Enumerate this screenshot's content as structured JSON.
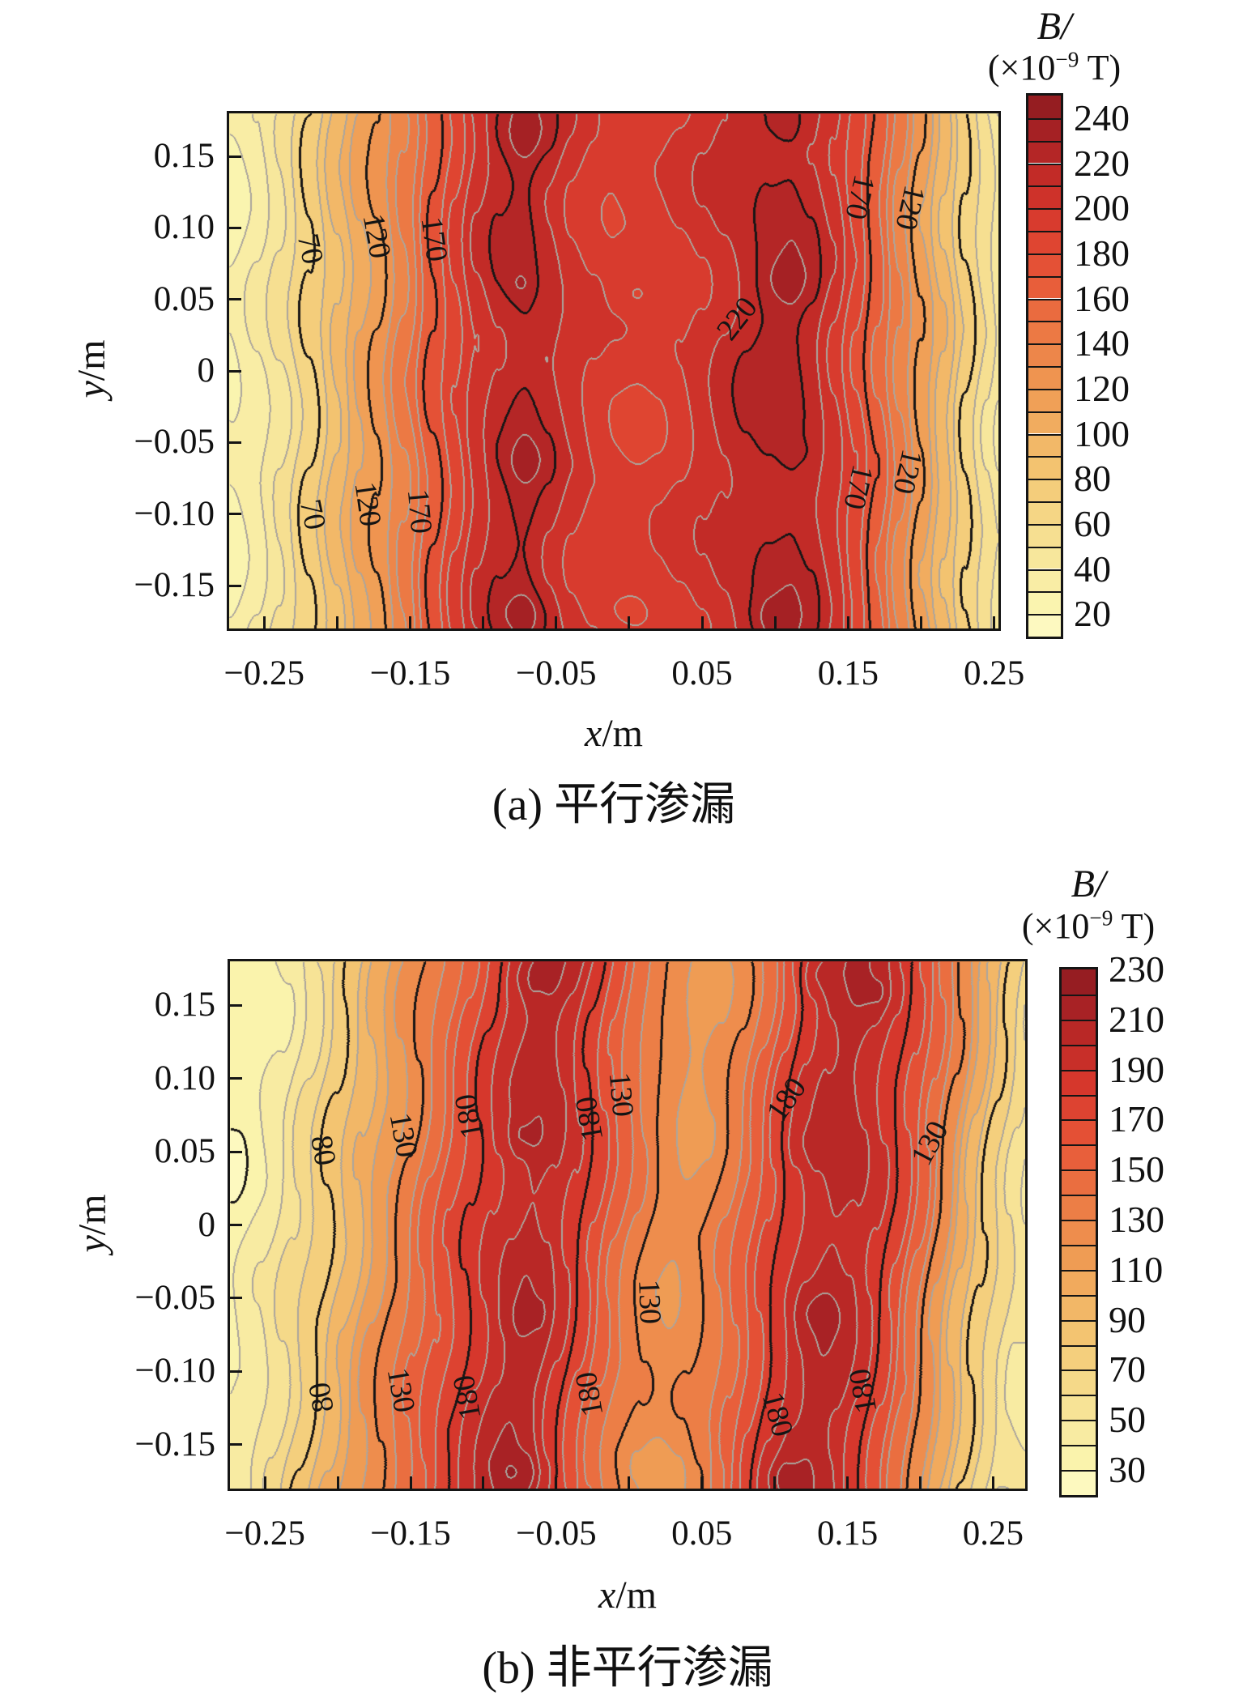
{
  "style": {
    "palette": [
      [
        0.0,
        "#FEFCC9"
      ],
      [
        0.07,
        "#FAF3AC"
      ],
      [
        0.15,
        "#F7E69B"
      ],
      [
        0.23,
        "#F5D685"
      ],
      [
        0.31,
        "#F3C471"
      ],
      [
        0.39,
        "#F1AE60"
      ],
      [
        0.47,
        "#EF9751"
      ],
      [
        0.55,
        "#EC7D46"
      ],
      [
        0.63,
        "#E9633C"
      ],
      [
        0.71,
        "#E24A33"
      ],
      [
        0.79,
        "#D5362C"
      ],
      [
        0.86,
        "#C02A27"
      ],
      [
        0.93,
        "#A82225"
      ],
      [
        1.0,
        "#8D1B20"
      ]
    ],
    "minor_line": "#ABA59D",
    "major_line": "#181616",
    "label_color": "#141414"
  },
  "chart_data": [
    {
      "type": "heatmap",
      "title": "(a) 平行渗漏",
      "xlabel_var": "x",
      "xlabel_unit": "/m",
      "ylabel_var": "y",
      "ylabel_unit": "/m",
      "xlim": [
        -0.274,
        0.253
      ],
      "ylim": [
        -0.18,
        0.18
      ],
      "contour_interval": 10,
      "major_interval": 50,
      "major_anchor": 20,
      "x_ticks": [
        -0.25,
        -0.2,
        -0.15,
        -0.1,
        -0.05,
        0,
        0.05,
        0.1,
        0.15,
        0.2,
        0.25
      ],
      "x_tick_labels": [
        {
          "v": -0.25,
          "t": "−0.25"
        },
        {
          "v": -0.15,
          "t": "−0.15"
        },
        {
          "v": -0.05,
          "t": "−0.05"
        },
        {
          "v": 0.05,
          "t": "0.05"
        },
        {
          "v": 0.15,
          "t": "0.15"
        },
        {
          "v": 0.25,
          "t": "0.25"
        }
      ],
      "y_tick_labels": [
        {
          "v": 0.15,
          "t": "0.15"
        },
        {
          "v": 0.1,
          "t": "0.10"
        },
        {
          "v": 0.05,
          "t": "0.05"
        },
        {
          "v": 0,
          "t": "0"
        },
        {
          "v": -0.05,
          "t": "−0.05"
        },
        {
          "v": -0.1,
          "t": "−0.10"
        },
        {
          "v": -0.15,
          "t": "−0.15"
        }
      ],
      "colorbar": {
        "title": "B/",
        "unit_prefix": "(×10",
        "unit_sup": "−9",
        "unit_suffix": " T)",
        "min": 10,
        "max": 250,
        "cell": 10,
        "tick_labels": [
          {
            "v": 240,
            "t": "240"
          },
          {
            "v": 220,
            "t": "220"
          },
          {
            "v": 200,
            "t": "200"
          },
          {
            "v": 180,
            "t": "180"
          },
          {
            "v": 160,
            "t": "160"
          },
          {
            "v": 140,
            "t": "140"
          },
          {
            "v": 120,
            "t": "120"
          },
          {
            "v": 100,
            "t": "100"
          },
          {
            "v": 80,
            "t": "80"
          },
          {
            "v": 60,
            "t": "60"
          },
          {
            "v": 40,
            "t": "40"
          },
          {
            "v": 20,
            "t": "20"
          }
        ]
      },
      "field": {
        "profile_x": [
          -0.274,
          -0.255,
          -0.24,
          -0.219,
          -0.2,
          -0.185,
          -0.173,
          -0.155,
          -0.134,
          -0.12,
          -0.105,
          -0.09,
          -0.072,
          -0.055,
          -0.04,
          -0.025,
          -0.01,
          0.005,
          0.02,
          0.035,
          0.05,
          0.065,
          0.08,
          0.095,
          0.11,
          0.125,
          0.14,
          0.155,
          0.17,
          0.185,
          0.2,
          0.215,
          0.23,
          0.245,
          0.253
        ],
        "profile_B": [
          28,
          38,
          50,
          70,
          92,
          110,
          120,
          142,
          170,
          188,
          205,
          216,
          223,
          214,
          205,
          198,
          194,
          193,
          195,
          199,
          205,
          211,
          217,
          222,
          224,
          216,
          203,
          185,
          163,
          140,
          117,
          95,
          72,
          54,
          44
        ],
        "ripple": [
          [
            4.5,
            50,
            28
          ],
          [
            3.2,
            27,
            -52
          ]
        ],
        "shear": 0,
        "bumps": [
          [
            -0.072,
            0.165,
            13,
            0.02,
            0.02
          ],
          [
            -0.076,
            0.06,
            7,
            0.011,
            0.011
          ],
          [
            -0.07,
            -0.063,
            9,
            0.013,
            0.013
          ],
          [
            -0.073,
            -0.17,
            13,
            0.018,
            0.016
          ],
          [
            0.108,
            0.062,
            12,
            0.02,
            0.019
          ],
          [
            0.116,
            -0.057,
            6,
            0.009,
            0.009
          ],
          [
            0.1,
            -0.173,
            12,
            0.016,
            0.015
          ],
          [
            0.108,
            0.172,
            8,
            0.014,
            0.013
          ],
          [
            0.003,
            0.052,
            -8,
            0.016,
            0.013
          ],
          [
            0.0,
            -0.17,
            -6,
            0.013,
            0.011
          ]
        ]
      },
      "contour_labels": [
        {
          "v": 70,
          "fx": 0.105,
          "fy": 0.262,
          "rot": 78
        },
        {
          "v": 120,
          "fx": 0.192,
          "fy": 0.238,
          "rot": 80
        },
        {
          "v": 170,
          "fx": 0.266,
          "fy": 0.243,
          "rot": 82
        },
        {
          "v": 220,
          "fx": 0.66,
          "fy": 0.4,
          "rot": -52
        },
        {
          "v": 170,
          "fx": 0.82,
          "fy": 0.162,
          "rot": 103
        },
        {
          "v": 120,
          "fx": 0.885,
          "fy": 0.182,
          "rot": 103
        },
        {
          "v": 70,
          "fx": 0.108,
          "fy": 0.778,
          "rot": 78
        },
        {
          "v": 120,
          "fx": 0.18,
          "fy": 0.758,
          "rot": 82
        },
        {
          "v": 170,
          "fx": 0.247,
          "fy": 0.772,
          "rot": 85
        },
        {
          "v": 170,
          "fx": 0.818,
          "fy": 0.725,
          "rot": 103
        },
        {
          "v": 120,
          "fx": 0.882,
          "fy": 0.695,
          "rot": 103
        }
      ]
    },
    {
      "type": "heatmap",
      "title": "(b) 非平行渗漏",
      "xlabel_var": "x",
      "xlabel_unit": "/m",
      "ylabel_var": "y",
      "ylabel_unit": "/m",
      "xlim": [
        -0.274,
        0.272
      ],
      "ylim": [
        -0.18,
        0.18
      ],
      "contour_interval": 10,
      "major_interval": 50,
      "major_anchor": 30,
      "x_ticks": [
        -0.25,
        -0.2,
        -0.15,
        -0.1,
        -0.05,
        0,
        0.05,
        0.1,
        0.15,
        0.2,
        0.25
      ],
      "x_tick_labels": [
        {
          "v": -0.25,
          "t": "−0.25"
        },
        {
          "v": -0.15,
          "t": "−0.15"
        },
        {
          "v": -0.05,
          "t": "−0.05"
        },
        {
          "v": 0.05,
          "t": "0.05"
        },
        {
          "v": 0.15,
          "t": "0.15"
        },
        {
          "v": 0.25,
          "t": "0.25"
        }
      ],
      "y_tick_labels": [
        {
          "v": 0.15,
          "t": "0.15"
        },
        {
          "v": 0.1,
          "t": "0.10"
        },
        {
          "v": 0.05,
          "t": "0.05"
        },
        {
          "v": 0,
          "t": "0"
        },
        {
          "v": -0.05,
          "t": "−0.05"
        },
        {
          "v": -0.1,
          "t": "−0.10"
        },
        {
          "v": -0.15,
          "t": "−0.15"
        }
      ],
      "colorbar": {
        "title": "B/",
        "unit_prefix": "(×10",
        "unit_sup": "−9",
        "unit_suffix": " T)",
        "min": 20,
        "max": 230,
        "cell": 10,
        "tick_labels": [
          {
            "v": 230,
            "t": "230"
          },
          {
            "v": 210,
            "t": "210"
          },
          {
            "v": 190,
            "t": "190"
          },
          {
            "v": 170,
            "t": "170"
          },
          {
            "v": 150,
            "t": "150"
          },
          {
            "v": 130,
            "t": "130"
          },
          {
            "v": 110,
            "t": "110"
          },
          {
            "v": 90,
            "t": "90"
          },
          {
            "v": 70,
            "t": "70"
          },
          {
            "v": 50,
            "t": "50"
          },
          {
            "v": 30,
            "t": "30"
          }
        ]
      },
      "field": {
        "profile_x": [
          -0.274,
          -0.25,
          -0.23,
          -0.21,
          -0.19,
          -0.17,
          -0.155,
          -0.14,
          -0.125,
          -0.11,
          -0.095,
          -0.08,
          -0.068,
          -0.055,
          -0.04,
          -0.025,
          -0.01,
          0.005,
          0.02,
          0.035,
          0.05,
          0.065,
          0.08,
          0.095,
          0.11,
          0.125,
          0.14,
          0.155,
          0.17,
          0.185,
          0.2,
          0.215,
          0.23,
          0.245,
          0.26,
          0.272
        ],
        "profile_B": [
          34,
          44,
          60,
          78,
          98,
          118,
          132,
          148,
          164,
          178,
          192,
          202,
          207,
          202,
          188,
          170,
          152,
          138,
          127,
          122,
          126,
          136,
          152,
          170,
          188,
          200,
          206,
          201,
          189,
          171,
          149,
          125,
          101,
          79,
          62,
          50
        ],
        "ripple": [
          [
            4.2,
            48,
            36
          ],
          [
            3.0,
            25,
            -60
          ]
        ],
        "shear": 0.1,
        "bumps": [
          [
            -0.068,
            0.168,
            12,
            0.018,
            0.017
          ],
          [
            -0.072,
            0.06,
            9,
            0.012,
            0.012
          ],
          [
            -0.07,
            -0.062,
            7,
            0.012,
            0.012
          ],
          [
            -0.072,
            -0.17,
            12,
            0.016,
            0.015
          ],
          [
            0.128,
            0.17,
            10,
            0.015,
            0.014
          ],
          [
            0.17,
            0.158,
            8,
            0.012,
            0.011
          ],
          [
            0.13,
            -0.06,
            10,
            0.013,
            0.012
          ],
          [
            0.105,
            -0.172,
            8,
            0.014,
            0.013
          ],
          [
            0.12,
            0.055,
            6,
            0.016,
            0.015
          ],
          [
            0.025,
            0.145,
            -13,
            0.05,
            0.042
          ],
          [
            0.02,
            -0.165,
            -8,
            0.038,
            0.03
          ]
        ]
      },
      "contour_labels": [
        {
          "v": 80,
          "fx": 0.117,
          "fy": 0.358,
          "rot": 80
        },
        {
          "v": 130,
          "fx": 0.218,
          "fy": 0.328,
          "rot": 80
        },
        {
          "v": 180,
          "fx": 0.3,
          "fy": 0.295,
          "rot": 260
        },
        {
          "v": 180,
          "fx": 0.452,
          "fy": 0.3,
          "rot": 260
        },
        {
          "v": 130,
          "fx": 0.492,
          "fy": 0.252,
          "rot": 85
        },
        {
          "v": 180,
          "fx": 0.7,
          "fy": 0.262,
          "rot": -55
        },
        {
          "v": 130,
          "fx": 0.88,
          "fy": 0.345,
          "rot": -62
        },
        {
          "v": 80,
          "fx": 0.115,
          "fy": 0.828,
          "rot": 260
        },
        {
          "v": 130,
          "fx": 0.215,
          "fy": 0.812,
          "rot": 80
        },
        {
          "v": 180,
          "fx": 0.298,
          "fy": 0.828,
          "rot": 260
        },
        {
          "v": 180,
          "fx": 0.452,
          "fy": 0.822,
          "rot": 260
        },
        {
          "v": 130,
          "fx": 0.528,
          "fy": 0.645,
          "rot": 88
        },
        {
          "v": 180,
          "fx": 0.688,
          "fy": 0.858,
          "rot": 75
        },
        {
          "v": 180,
          "fx": 0.796,
          "fy": 0.815,
          "rot": 260
        }
      ]
    }
  ]
}
